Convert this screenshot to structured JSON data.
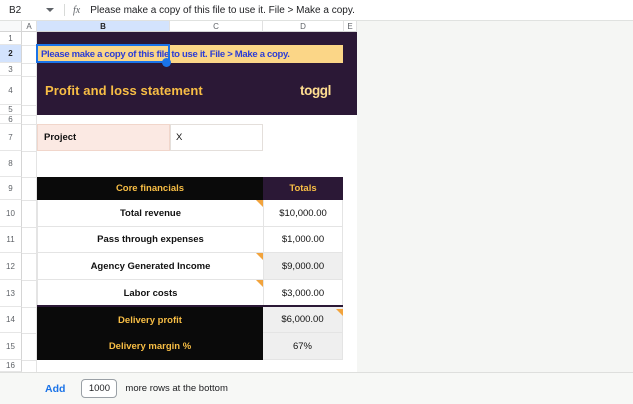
{
  "formula_bar": {
    "cell_ref": "B2",
    "fx_label": "fx",
    "formula": "Please make a copy of this file to use it. File > Make a copy."
  },
  "grid": {
    "columns": [
      "A",
      "B",
      "C",
      "D",
      "E"
    ],
    "selected_column": "B",
    "rows": [
      "1",
      "2",
      "3",
      "4",
      "5",
      "6",
      "7",
      "8",
      "9",
      "10",
      "11",
      "12",
      "13",
      "14",
      "15",
      "16"
    ],
    "selected_row": "2"
  },
  "banner": {
    "text": "Please make a copy of this file to use it. File > Make a copy."
  },
  "title_block": {
    "title": "Profit and loss statement",
    "logo": "toggl"
  },
  "project": {
    "label": "Project",
    "value": "X"
  },
  "table": {
    "header": {
      "label": "Core financials",
      "totals": "Totals"
    },
    "rows": [
      {
        "label": "Total revenue",
        "value": "$10,000.00",
        "note": true,
        "note_value": false,
        "dark": false,
        "shade": false
      },
      {
        "label": "Pass through expenses",
        "value": "$1,000.00",
        "note": false,
        "note_value": false,
        "dark": false,
        "shade": false
      },
      {
        "label": "Agency Generated Income",
        "value": "$9,000.00",
        "note": true,
        "note_value": false,
        "dark": false,
        "shade": true
      },
      {
        "label": "Labor costs",
        "value": "$3,000.00",
        "note": true,
        "note_value": false,
        "dark": false,
        "shade": false
      },
      {
        "label": "Delivery profit",
        "value": "$6,000.00",
        "note": false,
        "note_value": true,
        "dark": true,
        "shade": true
      },
      {
        "label": "Delivery margin %",
        "value": "67%",
        "note": false,
        "note_value": false,
        "dark": true,
        "shade": true
      }
    ]
  },
  "footer": {
    "add_label": "Add",
    "rows_value": "1000",
    "suffix": "more rows at the bottom"
  },
  "colors": {
    "brand_purple": "#2B1836",
    "header_black": "#0A0A0A",
    "gold_text": "#F8BE45",
    "logo_gold": "#FFDE91",
    "banner_bg": "#FBD687",
    "banner_text": "#2B3CD6",
    "pink_bg": "#FBE9E3",
    "pink_border": "#F1D6CB",
    "shade_gray": "#EFEFEF",
    "selection_blue": "#1A73E8",
    "note_orange": "#F2A33C",
    "link_blue": "#1A73E8",
    "selected_header_bg": "#D3E3FD",
    "gridline": "#E4E4E4",
    "outside_bg": "#F5F6F4"
  }
}
